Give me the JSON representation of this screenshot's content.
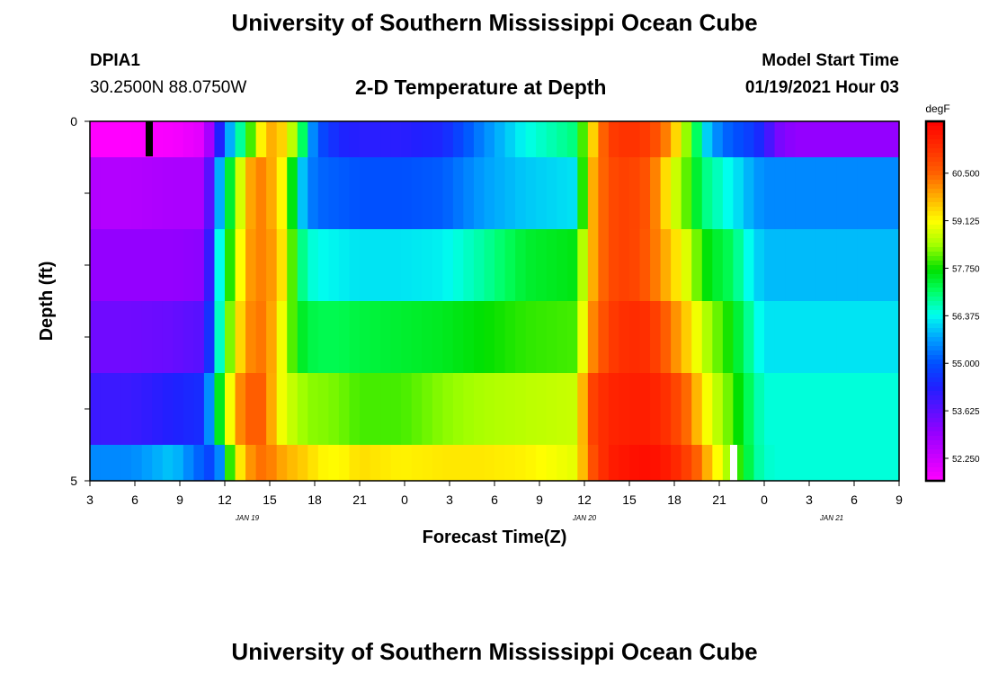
{
  "header": {
    "title": "University of Southern Mississippi Ocean Cube",
    "station_id": "DPIA1",
    "coordinates": "30.2500N 88.0750W",
    "plot_title": "2-D Temperature at Depth",
    "model_start_label": "Model Start Time",
    "model_start_value": "01/19/2021 Hour 03"
  },
  "footer": {
    "title": "University of Southern Mississippi Ocean Cube"
  },
  "chart_data": {
    "type": "heatmap",
    "title": "2-D Temperature at Depth",
    "xlabel": "Forecast Time(Z)",
    "ylabel": "Depth (ft)",
    "colorbar_label": "degF",
    "x_tick_labels": [
      "3",
      "6",
      "9",
      "12",
      "15",
      "18",
      "21",
      "0",
      "3",
      "6",
      "9",
      "12",
      "15",
      "18",
      "21",
      "0",
      "3",
      "6",
      "9"
    ],
    "date_labels": [
      {
        "label": "JAN 19",
        "at_tick": 3.5
      },
      {
        "label": "JAN 20",
        "at_tick": 11
      },
      {
        "label": "JAN 21",
        "at_tick": 16.5
      }
    ],
    "y_tick_labels": [
      "0",
      "5"
    ],
    "ylim": [
      0,
      5
    ],
    "colorbar_ticks": [
      "60.500",
      "59.125",
      "57.750",
      "56.375",
      "55.000",
      "53.625",
      "52.250"
    ],
    "value_range": [
      51.6,
      62.0
    ],
    "colorscale": [
      {
        "v": 51.6,
        "c": "#ff00ff"
      },
      {
        "v": 53.0,
        "c": "#9400ff"
      },
      {
        "v": 54.3,
        "c": "#2020ff"
      },
      {
        "v": 55.0,
        "c": "#0050ff"
      },
      {
        "v": 55.7,
        "c": "#00a0ff"
      },
      {
        "v": 56.4,
        "c": "#00ffee"
      },
      {
        "v": 57.1,
        "c": "#00ff60"
      },
      {
        "v": 57.7,
        "c": "#00e000"
      },
      {
        "v": 58.4,
        "c": "#a0ff00"
      },
      {
        "v": 59.1,
        "c": "#ffff00"
      },
      {
        "v": 59.8,
        "c": "#ffb000"
      },
      {
        "v": 60.5,
        "c": "#ff6000"
      },
      {
        "v": 61.2,
        "c": "#ff3000"
      },
      {
        "v": 62.0,
        "c": "#ff0000"
      }
    ],
    "forecast_hours": [
      0,
      4,
      8,
      11,
      12,
      12.5,
      13,
      14,
      15,
      16,
      17,
      18,
      19,
      20,
      21,
      22,
      24,
      26,
      30,
      34,
      38,
      42,
      47,
      48,
      50,
      52,
      54,
      56,
      58,
      59,
      60,
      61,
      62,
      63,
      64,
      65,
      66,
      68,
      70,
      72,
      74,
      76,
      78
    ],
    "depth_layers": [
      {
        "depth_range": [
          0.0,
          0.5
        ],
        "values": [
          51.6,
          51.6,
          51.7,
          52.0,
          53.5,
          54.3,
          55.2,
          56.4,
          57.2,
          58.8,
          59.6,
          60.0,
          59.0,
          58.2,
          56.0,
          55.0,
          54.4,
          54.2,
          54.2,
          54.4,
          55.5,
          56.4,
          57.0,
          59.0,
          61.0,
          61.2,
          61.0,
          60.0,
          57.8,
          56.4,
          55.7,
          55.3,
          55.0,
          54.9,
          54.6,
          54.3,
          53.4,
          53.0,
          53.0,
          53.0,
          53.0,
          53.0,
          53.0
        ]
      },
      {
        "depth_range": [
          0.5,
          1.5
        ],
        "values": [
          52.6,
          52.6,
          52.7,
          52.7,
          54.6,
          55.8,
          56.8,
          58.0,
          59.6,
          60.2,
          60.2,
          59.5,
          58.8,
          56.4,
          55.5,
          55.2,
          55.1,
          55.0,
          55.0,
          55.1,
          55.7,
          56.0,
          56.2,
          59.5,
          60.8,
          61.0,
          60.6,
          59.0,
          57.8,
          57.0,
          56.8,
          56.5,
          56.3,
          56.0,
          55.7,
          55.5,
          55.5,
          55.5,
          55.5,
          55.5,
          55.5,
          55.5,
          55.5
        ]
      },
      {
        "depth_range": [
          1.5,
          2.5
        ],
        "values": [
          53.0,
          53.0,
          53.0,
          53.1,
          55.0,
          56.4,
          57.3,
          58.4,
          59.8,
          60.2,
          60.2,
          59.8,
          58.9,
          57.2,
          56.6,
          56.4,
          56.3,
          56.2,
          56.2,
          56.3,
          56.8,
          57.4,
          57.6,
          59.5,
          60.8,
          61.0,
          60.5,
          59.6,
          58.6,
          57.8,
          57.5,
          57.3,
          57.1,
          56.6,
          56.2,
          55.9,
          55.9,
          55.9,
          55.9,
          55.9,
          55.9,
          55.9,
          55.9
        ]
      },
      {
        "depth_range": [
          2.5,
          3.5
        ],
        "values": [
          53.4,
          53.4,
          53.5,
          53.7,
          55.4,
          56.6,
          57.6,
          58.9,
          60.0,
          60.3,
          60.3,
          59.5,
          58.5,
          57.6,
          57.3,
          57.2,
          57.2,
          57.3,
          57.4,
          57.5,
          57.7,
          57.9,
          58.0,
          59.9,
          61.0,
          61.3,
          61.2,
          60.3,
          59.3,
          58.7,
          58.3,
          58.0,
          57.6,
          57.1,
          56.6,
          56.2,
          56.2,
          56.2,
          56.2,
          56.2,
          56.2,
          56.2,
          56.2
        ]
      },
      {
        "depth_range": [
          3.5,
          4.5
        ],
        "values": [
          54.0,
          54.0,
          54.3,
          54.5,
          56.6,
          57.5,
          58.3,
          59.8,
          60.5,
          60.6,
          60.5,
          59.2,
          58.8,
          58.5,
          58.3,
          58.3,
          58.2,
          58.0,
          58.0,
          58.3,
          58.5,
          58.6,
          58.7,
          60.8,
          61.4,
          61.5,
          61.5,
          61.1,
          60.2,
          59.3,
          58.8,
          58.4,
          58.0,
          57.4,
          56.9,
          56.5,
          56.5,
          56.5,
          56.5,
          56.5,
          56.5,
          56.5,
          56.5
        ]
      },
      {
        "depth_range": [
          4.5,
          5.0
        ],
        "values": [
          55.5,
          55.5,
          56.0,
          55.0,
          54.7,
          55.5,
          57.0,
          58.8,
          59.8,
          60.3,
          60.4,
          60.0,
          59.8,
          59.6,
          59.5,
          59.2,
          59.1,
          59.4,
          59.2,
          59.3,
          59.3,
          59.2,
          58.9,
          60.5,
          61.5,
          61.7,
          61.8,
          61.5,
          60.8,
          60.2,
          59.4,
          58.8,
          58.2,
          57.6,
          56.9,
          56.6,
          56.5,
          56.5,
          56.5,
          56.5,
          56.5,
          56.5,
          56.5
        ]
      }
    ]
  }
}
